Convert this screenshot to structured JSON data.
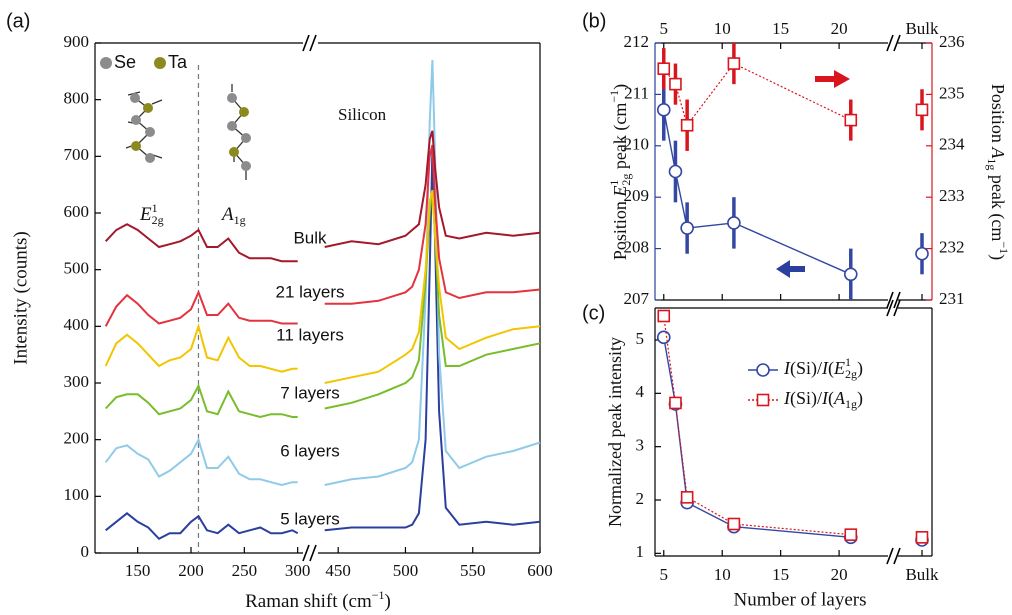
{
  "chart_data": [
    {
      "type": "line",
      "title": "(a)",
      "ylabel": "Intensity (counts)",
      "xlabel": [
        "Raman shift (cm",
        "−1",
        ")"
      ],
      "xlim": [
        110,
        305
      ],
      "ylim": [
        0,
        900
      ],
      "xticks": [
        150,
        200,
        250,
        300
      ],
      "yticks": [
        0,
        100,
        200,
        300,
        400,
        500,
        600,
        700,
        800,
        900
      ],
      "vline": 207,
      "atoms": [
        "Se",
        "Ta"
      ],
      "atom_colors": [
        "#8c8c8c",
        "#8c8a1e"
      ],
      "peak_labels": [
        [
          "E",
          "1",
          "2g"
        ],
        [
          "A",
          "1g"
        ]
      ],
      "x": [
        120,
        130,
        140,
        150,
        160,
        170,
        180,
        190,
        200,
        207,
        215,
        225,
        235,
        245,
        255,
        265,
        275,
        285,
        295,
        300
      ],
      "series": [
        {
          "name": "5 layers",
          "color": "#2b3f9e",
          "values": [
            40,
            55,
            70,
            55,
            45,
            25,
            35,
            35,
            55,
            65,
            40,
            35,
            50,
            35,
            40,
            45,
            35,
            35,
            40,
            35
          ]
        },
        {
          "name": "6 layers",
          "color": "#8fcbe8",
          "values": [
            160,
            185,
            190,
            175,
            165,
            135,
            145,
            160,
            175,
            200,
            150,
            150,
            170,
            140,
            130,
            130,
            125,
            120,
            125,
            125
          ]
        },
        {
          "name": "7 layers",
          "color": "#78bd2c",
          "values": [
            255,
            275,
            280,
            280,
            265,
            245,
            250,
            255,
            270,
            295,
            250,
            245,
            285,
            250,
            245,
            240,
            245,
            245,
            240,
            240
          ]
        },
        {
          "name": "11 layers",
          "color": "#f2c500",
          "values": [
            330,
            370,
            385,
            370,
            350,
            330,
            340,
            345,
            360,
            400,
            345,
            340,
            380,
            345,
            330,
            330,
            325,
            320,
            325,
            325
          ]
        },
        {
          "name": "21 layers",
          "color": "#e2333f",
          "values": [
            400,
            435,
            455,
            440,
            420,
            405,
            410,
            415,
            430,
            460,
            420,
            420,
            440,
            415,
            410,
            410,
            410,
            405,
            405,
            405
          ]
        },
        {
          "name": "Bulk",
          "color": "#a3182a",
          "values": [
            550,
            570,
            580,
            570,
            555,
            540,
            545,
            550,
            560,
            570,
            540,
            540,
            555,
            530,
            520,
            520,
            520,
            515,
            515,
            515
          ]
        }
      ]
    },
    {
      "type": "line",
      "annotation": "Silicon",
      "xlim": [
        435,
        600
      ],
      "ylim": [
        0,
        900
      ],
      "xticks": [
        450,
        500,
        550,
        600
      ],
      "x": [
        440,
        460,
        480,
        500,
        505,
        510,
        515,
        518,
        520,
        522,
        525,
        530,
        540,
        560,
        580,
        600
      ],
      "series": [
        {
          "color": "#2b3f9e",
          "values": [
            40,
            45,
            45,
            45,
            50,
            70,
            200,
            500,
            710,
            550,
            250,
            80,
            50,
            55,
            50,
            55
          ]
        },
        {
          "color": "#8fcbe8",
          "values": [
            120,
            130,
            135,
            150,
            160,
            200,
            450,
            760,
            870,
            700,
            350,
            180,
            150,
            170,
            180,
            195
          ]
        },
        {
          "color": "#78bd2c",
          "values": [
            255,
            265,
            280,
            300,
            310,
            340,
            480,
            600,
            640,
            560,
            420,
            330,
            330,
            350,
            360,
            370
          ]
        },
        {
          "color": "#f2c500",
          "values": [
            300,
            310,
            320,
            350,
            360,
            390,
            500,
            620,
            640,
            560,
            470,
            380,
            360,
            380,
            395,
            400
          ]
        },
        {
          "color": "#e2333f",
          "values": [
            440,
            440,
            445,
            460,
            470,
            500,
            580,
            700,
            720,
            620,
            520,
            460,
            450,
            460,
            460,
            465
          ]
        },
        {
          "color": "#a3182a",
          "values": [
            540,
            550,
            545,
            560,
            570,
            580,
            650,
            730,
            745,
            680,
            610,
            560,
            555,
            565,
            560,
            565
          ]
        }
      ]
    },
    {
      "type": "errorbar",
      "title": "(b)",
      "x": [
        5,
        6,
        7,
        11,
        21,
        "Bulk"
      ],
      "xlim": [
        4.25,
        23.5
      ],
      "xticks": [
        5,
        10,
        15,
        20,
        "Bulk"
      ],
      "ylim": [
        207,
        212
      ],
      "yticks": [
        207,
        208,
        209,
        210,
        211,
        212
      ],
      "y2lim": [
        231,
        236
      ],
      "y2ticks": [
        231,
        232,
        233,
        234,
        235,
        236
      ],
      "ylabel": [
        "Position ",
        "E",
        "1",
        "2g",
        " peak (cm",
        "−1",
        ")"
      ],
      "y2label": [
        "Position ",
        "A",
        "1g",
        " peak (cm",
        "−1",
        ")"
      ],
      "ycolor": "#2b3f9e",
      "y2color": "#d9161e",
      "series": [
        {
          "color": "#3347a3",
          "marker": "circle",
          "linestyle": "solid",
          "values": [
            210.7,
            209.5,
            208.4,
            208.5,
            207.5,
            207.9
          ],
          "errors": [
            0.6,
            0.6,
            0.5,
            0.5,
            0.5,
            0.4
          ]
        },
        {
          "color": "#d9161e",
          "marker": "square",
          "linestyle": "dotted",
          "axis": "y2",
          "values": [
            235.5,
            235.2,
            234.4,
            235.6,
            234.5,
            234.7
          ],
          "errors": [
            0.4,
            0.4,
            0.5,
            0.4,
            0.4,
            0.4
          ]
        }
      ]
    },
    {
      "type": "line",
      "title": "(c)",
      "x": [
        5,
        6,
        7,
        11,
        21,
        "Bulk"
      ],
      "xlim": [
        4.25,
        23.5
      ],
      "xticks": [
        5,
        10,
        15,
        20,
        "Bulk"
      ],
      "ylim": [
        0.95,
        5.6
      ],
      "yticks": [
        1,
        2,
        3,
        4,
        5
      ],
      "xlabel": "Number of layers",
      "ylabel": "Normalized peak intensity",
      "legend": "upper right",
      "series": [
        {
          "name": [
            "I",
            "(Si)/",
            "I",
            "(",
            "E",
            "1",
            "2g",
            ")"
          ],
          "color": "#3347a3",
          "marker": "circle",
          "linestyle": "solid",
          "values": [
            5.05,
            3.8,
            1.95,
            1.5,
            1.3,
            1.25
          ]
        },
        {
          "name": [
            "I",
            "(Si)/",
            "I",
            "(",
            "A",
            "1g",
            ")"
          ],
          "color": "#d9161e",
          "marker": "square",
          "linestyle": "dotted",
          "values": [
            5.45,
            3.82,
            2.05,
            1.55,
            1.35,
            1.3
          ]
        }
      ]
    }
  ]
}
